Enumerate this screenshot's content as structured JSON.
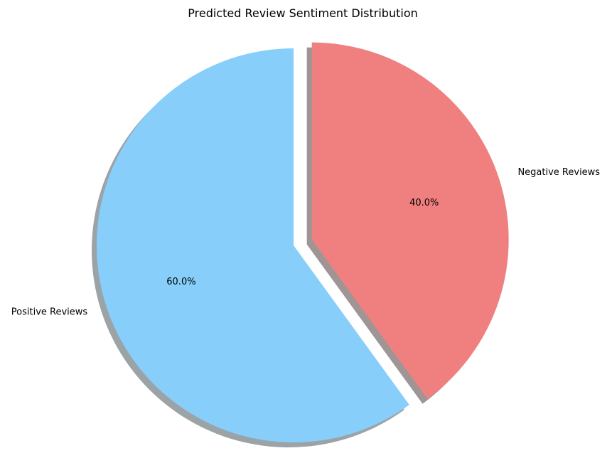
{
  "chart_data": {
    "type": "pie",
    "title": "Predicted Review Sentiment Distribution",
    "slices": [
      {
        "label": "Positive Reviews",
        "value": 60.0,
        "pct_label": "60.0%",
        "color": "#87CEFA",
        "explode": false
      },
      {
        "label": "Negative Reviews",
        "value": 40.0,
        "pct_label": "40.0%",
        "color": "#F08080",
        "explode": true
      }
    ],
    "start_angle_deg": 90,
    "shadow": true,
    "legend": "none"
  }
}
